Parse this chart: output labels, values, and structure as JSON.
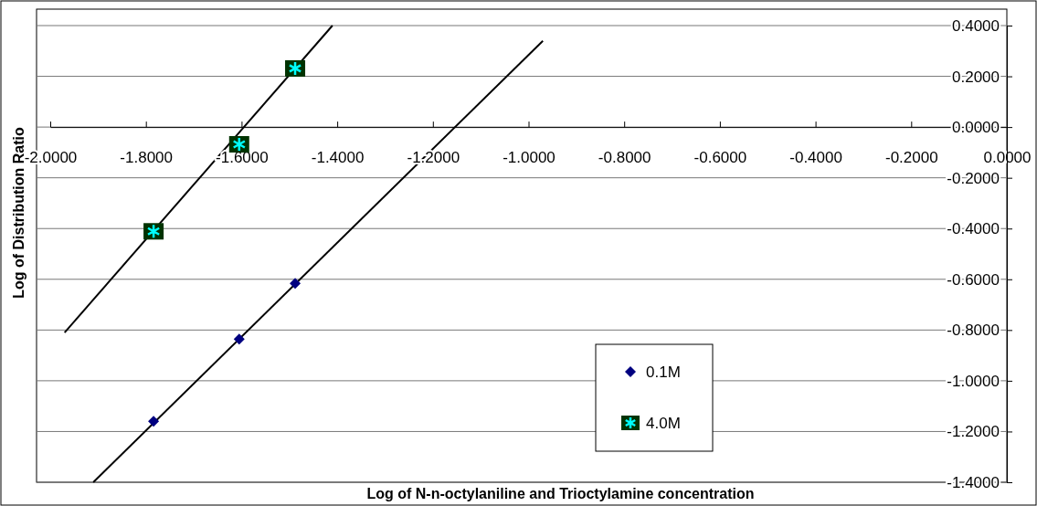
{
  "chart_data": {
    "type": "scatter",
    "xlabel": "Log of N-n-octylaniline and Trioctylamine concentration",
    "ylabel": "Log of Distribution Ratio",
    "xlim": [
      -2.0,
      0.0
    ],
    "xticks": [
      {
        "value": -2.0,
        "label": "-2.0000"
      },
      {
        "value": -1.8,
        "label": "-1.8000"
      },
      {
        "value": -1.6,
        "label": "-1.6000"
      },
      {
        "value": -1.4,
        "label": "-1.4000"
      },
      {
        "value": -1.2,
        "label": "-1.2000"
      },
      {
        "value": -1.0,
        "label": "-1.0000"
      },
      {
        "value": -0.8,
        "label": "-0.8000"
      },
      {
        "value": -0.6,
        "label": "-0.6000"
      },
      {
        "value": -0.4,
        "label": "-0.4000"
      },
      {
        "value": -0.2,
        "label": "-0.2000"
      },
      {
        "value": 0.0,
        "label": "0.0000"
      }
    ],
    "ylim": [
      -1.4,
      0.4
    ],
    "yticks": [
      {
        "value": -1.4,
        "label": "-1.4000"
      },
      {
        "value": -1.2,
        "label": "-1.2000"
      },
      {
        "value": -1.0,
        "label": "-1.0000"
      },
      {
        "value": -0.8,
        "label": "-0.8000"
      },
      {
        "value": -0.6,
        "label": "-0.6000"
      },
      {
        "value": -0.4,
        "label": "-0.4000"
      },
      {
        "value": -0.2,
        "label": "-0.2000"
      },
      {
        "value": 0.0,
        "label": "0.0000"
      },
      {
        "value": 0.2,
        "label": "0.2000"
      },
      {
        "value": 0.4,
        "label": "0.4000"
      }
    ],
    "grid": "y",
    "legend": "bottom right",
    "series": [
      {
        "name": "0.1M",
        "marker": "diamond",
        "color": "#000080",
        "x": [
          -1.784,
          -1.605,
          -1.488
        ],
        "values": [
          -1.16,
          -0.836,
          -0.616
        ]
      },
      {
        "name": "4.0M",
        "marker": "cross",
        "color": "#00ffff",
        "x": [
          -1.784,
          -1.605,
          -1.488
        ],
        "values": [
          -0.411,
          -0.068,
          0.231
        ]
      },
      {
        "type": "line",
        "color": "#000000",
        "x": [
          -1.91,
          -0.97
        ],
        "values": [
          -1.4,
          0.34
        ]
      },
      {
        "type": "line",
        "color": "#000000",
        "x": [
          -1.97,
          -1.41
        ],
        "values": [
          -0.81,
          0.4
        ]
      }
    ]
  }
}
